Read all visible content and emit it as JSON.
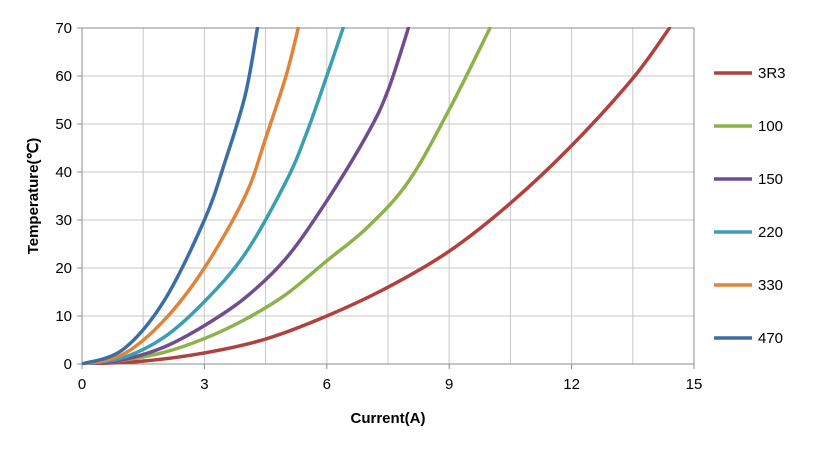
{
  "chart_data": {
    "type": "line",
    "title": "",
    "xlabel": "Current(A)",
    "ylabel": "Temperature(℃)",
    "xlim": [
      0,
      15
    ],
    "ylim": [
      0,
      70
    ],
    "x_ticks": [
      0,
      3,
      6,
      9,
      12,
      15
    ],
    "y_ticks": [
      0,
      10,
      20,
      30,
      40,
      50,
      60,
      70
    ],
    "grid": true,
    "legend_position": "right",
    "series": [
      {
        "name": "3R3",
        "color": "#b0413e",
        "x": [
          0,
          1.5,
          3,
          4.5,
          6,
          7.5,
          9,
          10.5,
          12,
          13.5,
          14.4
        ],
        "y": [
          0,
          0.6,
          2.3,
          5.2,
          10,
          16,
          23.5,
          33.5,
          45.5,
          59.5,
          70
        ]
      },
      {
        "name": "100",
        "color": "#8db24a",
        "x": [
          0,
          1,
          2,
          3,
          4,
          5,
          6,
          7,
          8,
          9,
          10
        ],
        "y": [
          0,
          0.8,
          2.4,
          5.3,
          9.3,
          14.5,
          21.5,
          28.5,
          38,
          53,
          70
        ]
      },
      {
        "name": "150",
        "color": "#6f4d8f",
        "x": [
          0,
          1,
          2,
          3,
          4,
          5,
          6,
          7,
          7.5,
          8
        ],
        "y": [
          0,
          0.9,
          3.5,
          8,
          13.8,
          22,
          34,
          48,
          57,
          70
        ]
      },
      {
        "name": "220",
        "color": "#3a9fb0",
        "x": [
          0,
          1,
          2,
          3,
          4,
          5,
          5.5,
          6,
          6.4
        ],
        "y": [
          0,
          1.3,
          5.5,
          13,
          23,
          38,
          48,
          60,
          70
        ]
      },
      {
        "name": "330",
        "color": "#e0843a",
        "x": [
          0,
          1,
          2,
          3,
          4,
          4.5,
          5,
          5.3
        ],
        "y": [
          0,
          2,
          9,
          20,
          35,
          47,
          60,
          70
        ]
      },
      {
        "name": "470",
        "color": "#3c6ea5",
        "x": [
          0,
          1,
          2,
          3,
          3.5,
          4,
          4.3
        ],
        "y": [
          0,
          3,
          13,
          30,
          42,
          56,
          70
        ]
      }
    ]
  }
}
